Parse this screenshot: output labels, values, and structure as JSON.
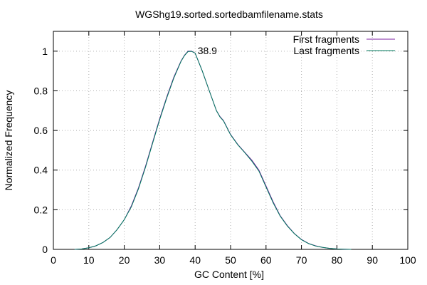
{
  "chart_data": {
    "type": "line",
    "title": "WGShg19.sorted.sortedbamfilename.stats",
    "xlabel": "GC Content [%]",
    "ylabel": "Normalized Frequency",
    "xlim": [
      0,
      100
    ],
    "ylim": [
      0,
      1.1
    ],
    "xticks": [
      0,
      10,
      20,
      30,
      40,
      50,
      60,
      70,
      80,
      90,
      100
    ],
    "yticks": [
      0,
      0.2,
      0.4,
      0.6,
      0.8,
      1
    ],
    "ytick_labels": [
      "0",
      "0.2",
      "0.4",
      "0.6",
      "0.8",
      "1"
    ],
    "grid": true,
    "legend_position": "top-right",
    "annotation": {
      "text": "38.9",
      "x": 38.9,
      "y": 1.0
    },
    "series": [
      {
        "name": "First fragments",
        "color": "#7b1fa2",
        "x": [
          6,
          8,
          10,
          12,
          14,
          16,
          18,
          20,
          22,
          24,
          26,
          28,
          30,
          32,
          34,
          36,
          37,
          38,
          39,
          40,
          42,
          44,
          46,
          47,
          48,
          50,
          52,
          54,
          56,
          58,
          60,
          62,
          64,
          66,
          68,
          70,
          72,
          74,
          76,
          78,
          80,
          82,
          84
        ],
        "y": [
          0.0,
          0.002,
          0.008,
          0.018,
          0.035,
          0.06,
          0.1,
          0.15,
          0.22,
          0.31,
          0.42,
          0.54,
          0.66,
          0.77,
          0.87,
          0.95,
          0.98,
          1.0,
          1.0,
          0.99,
          0.9,
          0.8,
          0.7,
          0.67,
          0.65,
          0.58,
          0.53,
          0.49,
          0.45,
          0.4,
          0.32,
          0.24,
          0.17,
          0.12,
          0.08,
          0.05,
          0.03,
          0.018,
          0.01,
          0.005,
          0.002,
          0.001,
          0.0
        ]
      },
      {
        "name": "Last fragments",
        "color": "#007a5e",
        "x": [
          6,
          8,
          10,
          12,
          14,
          16,
          18,
          20,
          22,
          24,
          26,
          28,
          30,
          32,
          34,
          36,
          37,
          38,
          39,
          40,
          42,
          44,
          46,
          47,
          48,
          50,
          52,
          54,
          56,
          58,
          60,
          62,
          64,
          66,
          68,
          70,
          72,
          74,
          76,
          78,
          80,
          82,
          84
        ],
        "y": [
          0.0,
          0.002,
          0.008,
          0.018,
          0.035,
          0.06,
          0.1,
          0.15,
          0.215,
          0.305,
          0.415,
          0.535,
          0.655,
          0.765,
          0.865,
          0.948,
          0.978,
          0.998,
          0.999,
          0.99,
          0.9,
          0.8,
          0.7,
          0.668,
          0.648,
          0.578,
          0.528,
          0.488,
          0.445,
          0.395,
          0.315,
          0.235,
          0.168,
          0.118,
          0.079,
          0.049,
          0.029,
          0.017,
          0.01,
          0.005,
          0.002,
          0.001,
          0.0
        ]
      }
    ]
  }
}
